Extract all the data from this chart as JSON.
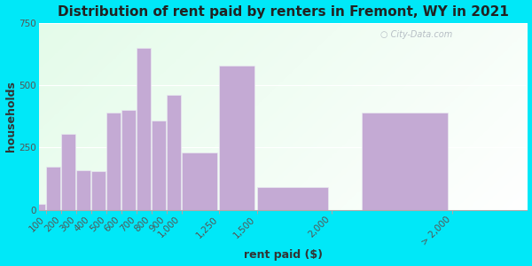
{
  "title": "Distribution of rent paid by renters in Fremont, WY in 2021",
  "xlabel": "rent paid ($)",
  "ylabel": "households",
  "bar_color": "#c4aad4",
  "bar_edge_color": "#e8e8f0",
  "background_outer": "#00e8f8",
  "title_fontsize": 11,
  "axis_label_fontsize": 9,
  "tick_fontsize": 7.5,
  "ylim": [
    0,
    750
  ],
  "yticks": [
    0,
    250,
    500,
    750
  ],
  "watermark": "City-Data.com",
  "bar_lefts": [
    0,
    100,
    200,
    300,
    400,
    500,
    600,
    700,
    800,
    900,
    1000,
    1250,
    1500,
    2200
  ],
  "bar_widths": [
    100,
    100,
    100,
    100,
    100,
    100,
    100,
    100,
    100,
    100,
    250,
    250,
    500,
    600
  ],
  "bar_heights": [
    25,
    175,
    305,
    160,
    155,
    390,
    400,
    650,
    360,
    460,
    230,
    580,
    90,
    390
  ],
  "xtick_positions": [
    100,
    200,
    300,
    400,
    500,
    600,
    700,
    800,
    900,
    1000,
    1250,
    1500,
    2000,
    2800
  ],
  "xtick_labels": [
    "100",
    "200",
    "300",
    "400",
    "500",
    "600",
    "700",
    "800",
    "900",
    "1,000",
    "1,250",
    "1,500",
    "2,000",
    "> 2,000"
  ],
  "xlim": [
    50,
    3300
  ]
}
